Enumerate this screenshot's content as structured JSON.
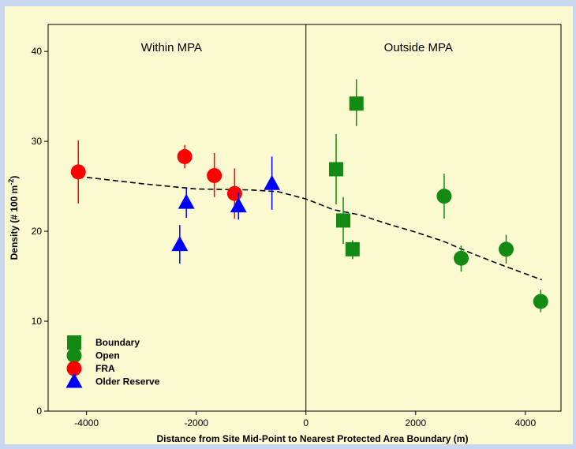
{
  "chart_data": {
    "type": "scatter",
    "title": "",
    "xlabel": "Distance from Site Mid-Point to Nearest Protected Area Boundary (m)",
    "ylabel_main": "Density (# 100 m",
    "ylabel_sup": "-2",
    "ylabel_close": ")",
    "xlim": [
      -4700,
      4650
    ],
    "ylim": [
      0,
      43
    ],
    "xticks": [
      -4000,
      -2000,
      0,
      2000,
      4000
    ],
    "yticks": [
      0,
      10,
      20,
      30,
      40
    ],
    "regions": [
      {
        "label": "Within MPA",
        "x": -2450
      },
      {
        "label": "Outside MPA",
        "x": 2050
      }
    ],
    "boundary_x": 0,
    "series": [
      {
        "name": "Boundary",
        "marker": "square",
        "color": "#138a13",
        "points": [
          {
            "x": 550,
            "y": 26.9,
            "lo": 23.0,
            "hi": 30.8
          },
          {
            "x": 680,
            "y": 21.2,
            "lo": 18.6,
            "hi": 23.8
          },
          {
            "x": 850,
            "y": 18.0,
            "lo": 16.9,
            "hi": 19.0
          },
          {
            "x": 920,
            "y": 34.2,
            "lo": 31.7,
            "hi": 36.9
          }
        ]
      },
      {
        "name": "Open",
        "marker": "circle",
        "color": "#138a13",
        "points": [
          {
            "x": 2520,
            "y": 23.9,
            "lo": 21.4,
            "hi": 26.4
          },
          {
            "x": 2830,
            "y": 17.0,
            "lo": 15.5,
            "hi": 18.4
          },
          {
            "x": 3650,
            "y": 18.0,
            "lo": 16.4,
            "hi": 19.6
          },
          {
            "x": 4280,
            "y": 12.2,
            "lo": 11.0,
            "hi": 13.5
          }
        ]
      },
      {
        "name": "FRA",
        "marker": "circle",
        "color": "#ff0000",
        "points": [
          {
            "x": -4150,
            "y": 26.6,
            "lo": 23.1,
            "hi": 30.1
          },
          {
            "x": -2210,
            "y": 28.3,
            "lo": 27.0,
            "hi": 29.6
          },
          {
            "x": -1670,
            "y": 26.2,
            "lo": 23.8,
            "hi": 28.7
          },
          {
            "x": -1300,
            "y": 24.2,
            "lo": 21.4,
            "hi": 27.0
          }
        ]
      },
      {
        "name": "Older Reserve",
        "marker": "triangle",
        "color": "#0000ff",
        "points": [
          {
            "x": -2300,
            "y": 18.5,
            "lo": 16.4,
            "hi": 20.7
          },
          {
            "x": -2180,
            "y": 23.2,
            "lo": 21.5,
            "hi": 24.9
          },
          {
            "x": -1230,
            "y": 22.8,
            "lo": 21.3,
            "hi": 24.3
          },
          {
            "x": -620,
            "y": 25.3,
            "lo": 22.4,
            "hi": 28.3
          }
        ]
      }
    ],
    "trend": [
      {
        "x": -4150,
        "y": 26.1
      },
      {
        "x": -3000,
        "y": 25.3
      },
      {
        "x": -2000,
        "y": 24.7
      },
      {
        "x": -1000,
        "y": 24.6
      },
      {
        "x": -500,
        "y": 24.4
      },
      {
        "x": 0,
        "y": 23.6
      },
      {
        "x": 500,
        "y": 22.4
      },
      {
        "x": 1000,
        "y": 21.8
      },
      {
        "x": 1500,
        "y": 20.8
      },
      {
        "x": 2000,
        "y": 19.9
      },
      {
        "x": 2500,
        "y": 18.9
      },
      {
        "x": 3000,
        "y": 17.6
      },
      {
        "x": 3500,
        "y": 16.4
      },
      {
        "x": 4300,
        "y": 14.6
      }
    ],
    "legend": [
      "Boundary",
      "Open",
      "FRA",
      "Older Reserve"
    ],
    "legend_position": "bottom-left"
  }
}
